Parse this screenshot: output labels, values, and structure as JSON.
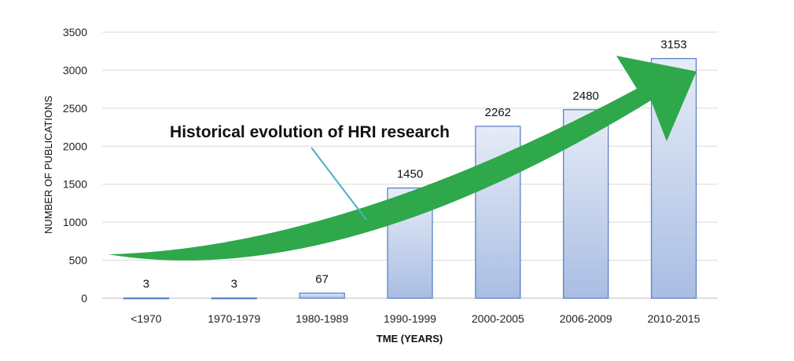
{
  "chart_data": {
    "type": "bar",
    "title": "",
    "xlabel": "TME (YEARS)",
    "ylabel": "NUMBER OF PUBLICATIONS",
    "categories": [
      "<1970",
      "1970-1979",
      "1980-1989",
      "1990-1999",
      "2000-2005",
      "2006-2009",
      "2010-2015"
    ],
    "values": [
      3,
      3,
      67,
      1450,
      2262,
      2480,
      3153
    ],
    "ylim": [
      0,
      3500
    ],
    "yticks": [
      0,
      500,
      1000,
      1500,
      2000,
      2500,
      3000,
      3500
    ],
    "grid": true,
    "legend": "none",
    "annotation": "Historical evolution of HRI research",
    "colors": {
      "bar_fill_top": "#e6ecf7",
      "bar_fill_bottom": "#a9bde3",
      "bar_stroke": "#5b82c6",
      "arrow": "#2ea84a",
      "grid": "#d9d9d9",
      "callout_line": "#4ab0c8"
    }
  }
}
